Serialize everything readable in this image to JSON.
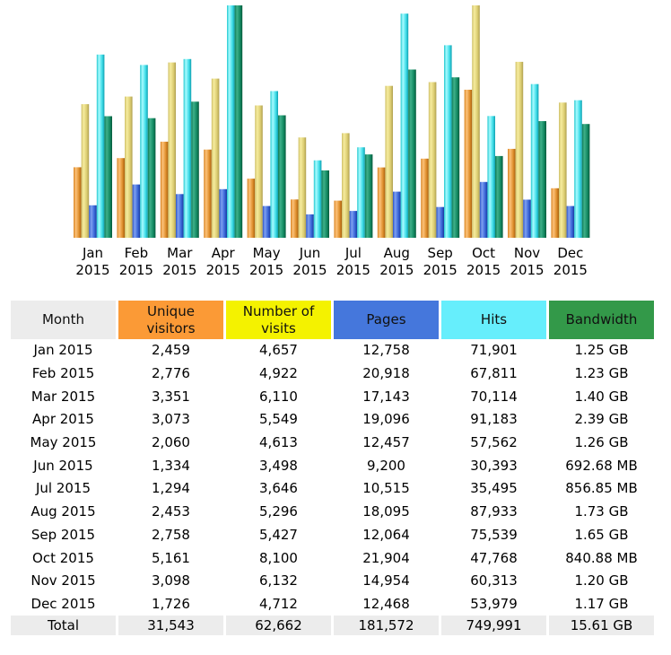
{
  "chart_data": {
    "type": "bar",
    "title": "",
    "xlabel": "",
    "ylabel": "",
    "grid": false,
    "legend": "none",
    "categories": [
      "Jan 2015",
      "Feb 2015",
      "Mar 2015",
      "Apr 2015",
      "May 2015",
      "Jun 2015",
      "Jul 2015",
      "Aug 2015",
      "Sep 2015",
      "Oct 2015",
      "Nov 2015",
      "Dec 2015"
    ],
    "category_lines": [
      [
        "Jan",
        "2015"
      ],
      [
        "Feb",
        "2015"
      ],
      [
        "Mar",
        "2015"
      ],
      [
        "Apr",
        "2015"
      ],
      [
        "May",
        "2015"
      ],
      [
        "Jun",
        "2015"
      ],
      [
        "Jul",
        "2015"
      ],
      [
        "Aug",
        "2015"
      ],
      [
        "Sep",
        "2015"
      ],
      [
        "Oct",
        "2015"
      ],
      [
        "Nov",
        "2015"
      ],
      [
        "Dec",
        "2015"
      ]
    ],
    "series": [
      {
        "name": "Unique visitors",
        "color": "#fb9a36",
        "scale_group": "visits",
        "values": [
          2459,
          2776,
          3351,
          3073,
          2060,
          1334,
          1294,
          2453,
          2758,
          5161,
          3098,
          1726
        ]
      },
      {
        "name": "Number of visits",
        "color": "#e6d880",
        "scale_group": "visits",
        "values": [
          4657,
          4922,
          6110,
          5549,
          4613,
          3498,
          3646,
          5296,
          5427,
          8100,
          6132,
          4712
        ]
      },
      {
        "name": "Pages",
        "color": "#4577dc",
        "scale_group": "hits",
        "values": [
          12758,
          20918,
          17143,
          19096,
          12457,
          9200,
          10515,
          18095,
          12064,
          21904,
          14954,
          12468
        ]
      },
      {
        "name": "Hits",
        "color": "#66eefc",
        "scale_group": "hits",
        "values": [
          71901,
          67811,
          70114,
          91183,
          57562,
          30393,
          35495,
          87933,
          75539,
          47768,
          60313,
          53979
        ]
      },
      {
        "name": "Bandwidth (GB)",
        "color": "#1a8a66",
        "scale_group": "bandwidth",
        "values": [
          1.25,
          1.23,
          1.4,
          2.39,
          1.26,
          0.6927,
          0.8569,
          1.73,
          1.65,
          0.8409,
          1.2,
          1.17
        ]
      }
    ],
    "scale_max": {
      "visits": 8100,
      "hits": 91183,
      "bandwidth": 2.39
    }
  },
  "table": {
    "headers": [
      {
        "label": "Month",
        "color": "#ececec"
      },
      {
        "label": "Unique visitors",
        "color": "#fb9a36"
      },
      {
        "label": "Number of visits",
        "color": "#f4f200"
      },
      {
        "label": "Pages",
        "color": "#4577dc"
      },
      {
        "label": "Hits",
        "color": "#66eefc"
      },
      {
        "label": "Bandwidth",
        "color": "#339949"
      }
    ],
    "rows": [
      [
        "Jan 2015",
        "2,459",
        "4,657",
        "12,758",
        "71,901",
        "1.25 GB"
      ],
      [
        "Feb 2015",
        "2,776",
        "4,922",
        "20,918",
        "67,811",
        "1.23 GB"
      ],
      [
        "Mar 2015",
        "3,351",
        "6,110",
        "17,143",
        "70,114",
        "1.40 GB"
      ],
      [
        "Apr 2015",
        "3,073",
        "5,549",
        "19,096",
        "91,183",
        "2.39 GB"
      ],
      [
        "May 2015",
        "2,060",
        "4,613",
        "12,457",
        "57,562",
        "1.26 GB"
      ],
      [
        "Jun 2015",
        "1,334",
        "3,498",
        "9,200",
        "30,393",
        "692.68 MB"
      ],
      [
        "Jul 2015",
        "1,294",
        "3,646",
        "10,515",
        "35,495",
        "856.85 MB"
      ],
      [
        "Aug 2015",
        "2,453",
        "5,296",
        "18,095",
        "87,933",
        "1.73 GB"
      ],
      [
        "Sep 2015",
        "2,758",
        "5,427",
        "12,064",
        "75,539",
        "1.65 GB"
      ],
      [
        "Oct 2015",
        "5,161",
        "8,100",
        "21,904",
        "47,768",
        "840.88 MB"
      ],
      [
        "Nov 2015",
        "3,098",
        "6,132",
        "14,954",
        "60,313",
        "1.20 GB"
      ],
      [
        "Dec 2015",
        "1,726",
        "4,712",
        "12,468",
        "53,979",
        "1.17 GB"
      ]
    ],
    "total": [
      "Total",
      "31,543",
      "62,662",
      "181,572",
      "749,991",
      "15.61 GB"
    ]
  }
}
